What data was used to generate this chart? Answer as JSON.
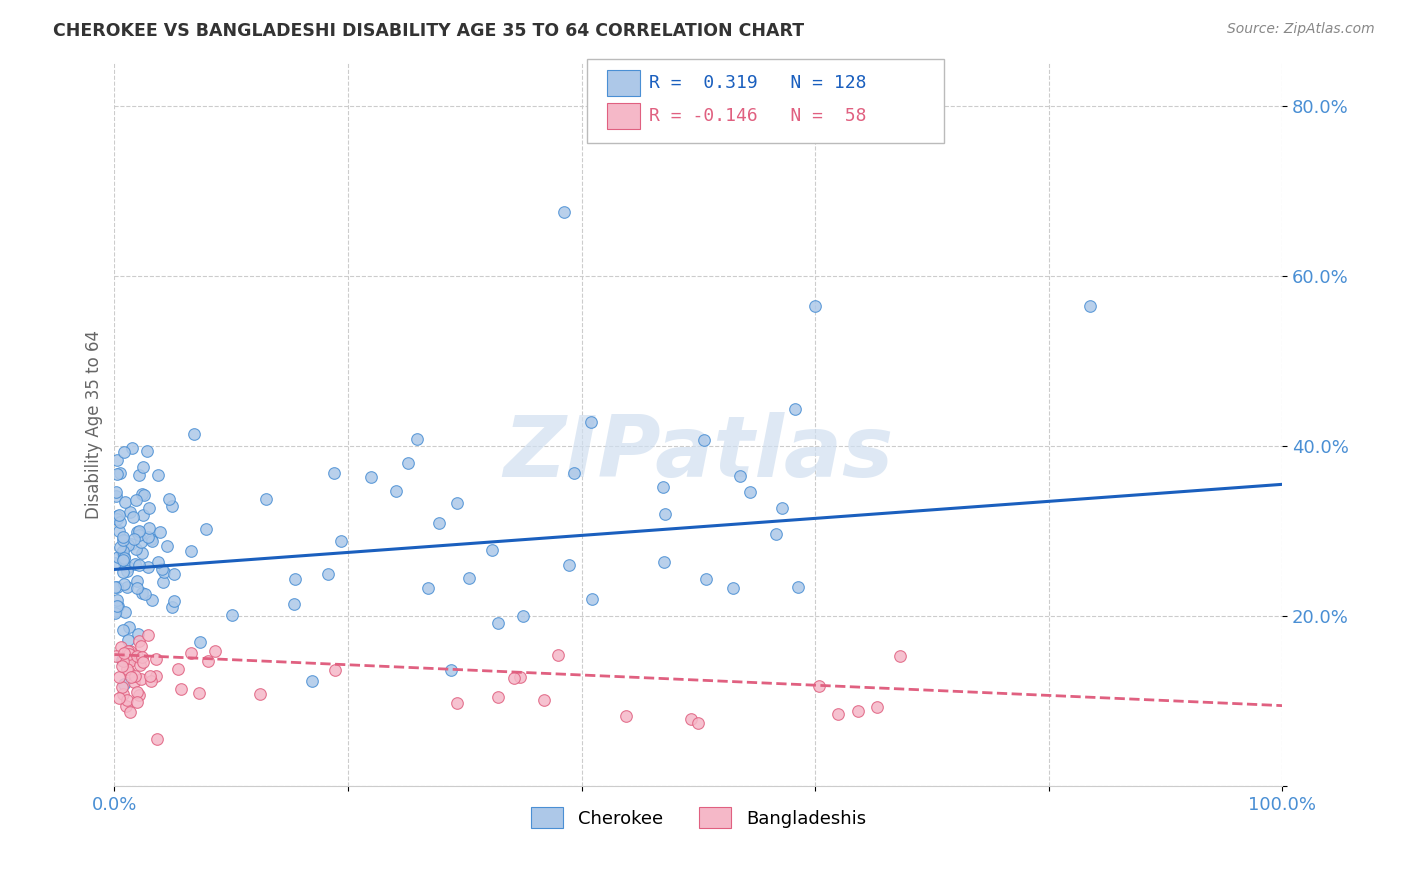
{
  "title": "CHEROKEE VS BANGLADESHI DISABILITY AGE 35 TO 64 CORRELATION CHART",
  "source": "Source: ZipAtlas.com",
  "ylabel": "Disability Age 35 to 64",
  "xlim": [
    0.0,
    1.0
  ],
  "ylim": [
    0.0,
    0.85
  ],
  "cherokee_color": "#adc8e8",
  "cherokee_edge_color": "#4a8fd4",
  "bangladeshi_color": "#f5b8c8",
  "bangladeshi_edge_color": "#e06080",
  "cherokee_line_color": "#1a5fbe",
  "bangladeshi_line_color": "#e06080",
  "tick_color": "#4a8fd4",
  "grid_color": "#cccccc",
  "title_color": "#333333",
  "source_color": "#888888",
  "ylabel_color": "#666666",
  "watermark_color": "#d0dff0",
  "cherokee_R": 0.319,
  "cherokee_N": 128,
  "bangladeshi_R": -0.146,
  "bangladeshi_N": 58,
  "cherokee_line_y0": 0.255,
  "cherokee_line_y1": 0.355,
  "bangladeshi_line_y0": 0.155,
  "bangladeshi_line_y1": 0.095
}
